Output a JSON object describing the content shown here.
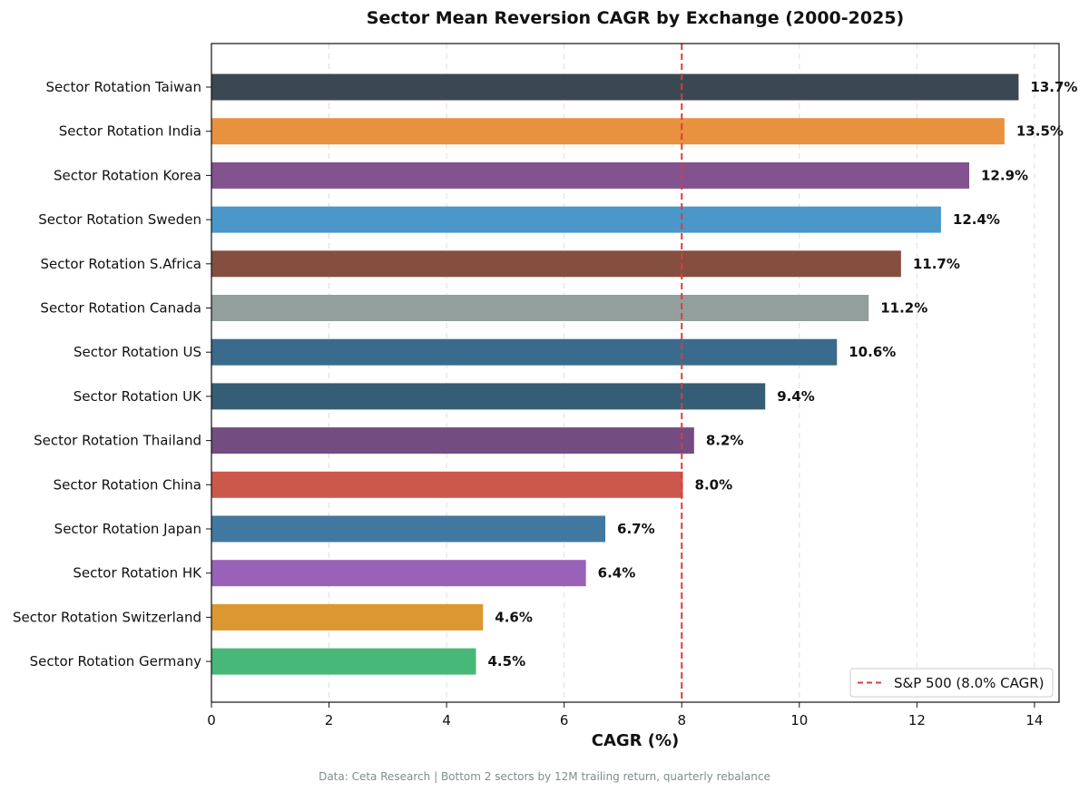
{
  "chart_data": {
    "type": "bar",
    "orientation": "horizontal",
    "title": "Sector Mean Reversion CAGR by Exchange (2000-2025)",
    "xlabel": "CAGR (%)",
    "ylabel": "",
    "xlim": [
      0,
      14.4
    ],
    "xticks": [
      "0",
      "2",
      "4",
      "6",
      "8",
      "10",
      "12",
      "14"
    ],
    "grid": "vertical dashed",
    "categories": [
      "Sector Rotation Taiwan",
      "Sector Rotation India",
      "Sector Rotation Korea",
      "Sector Rotation Sweden",
      "Sector Rotation S.Africa",
      "Sector Rotation Canada",
      "Sector Rotation US",
      "Sector Rotation UK",
      "Sector Rotation Thailand",
      "Sector Rotation China",
      "Sector Rotation Japan",
      "Sector Rotation HK",
      "Sector Rotation Switzerland",
      "Sector Rotation Germany"
    ],
    "values": [
      13.73,
      13.49,
      12.89,
      12.41,
      11.73,
      11.18,
      10.64,
      9.42,
      8.21,
      8.02,
      6.7,
      6.37,
      4.62,
      4.5
    ],
    "value_labels": [
      "13.7%",
      "13.5%",
      "12.9%",
      "12.4%",
      "11.7%",
      "11.2%",
      "10.6%",
      "9.4%",
      "8.2%",
      "8.0%",
      "6.7%",
      "6.4%",
      "4.6%",
      "4.5%"
    ],
    "colors": [
      "#3b4751",
      "#e8913f",
      "#83538f",
      "#4b97c9",
      "#844f3e",
      "#939f9d",
      "#3b6b8c",
      "#365d76",
      "#734c82",
      "#cc584b",
      "#41789f",
      "#9a61b8",
      "#dc9830",
      "#47b877"
    ],
    "reference_line": {
      "value": 8.0,
      "label": "S&P 500 (8.0% CAGR)",
      "color": "#e0393e",
      "style": "dashed"
    },
    "legend": {
      "placement": "bottom-right",
      "entries": [
        "S&P 500 (8.0% CAGR)"
      ]
    },
    "footnote": "Data: Ceta Research | Bottom 2 sectors by 12M trailing return, quarterly rebalance"
  }
}
